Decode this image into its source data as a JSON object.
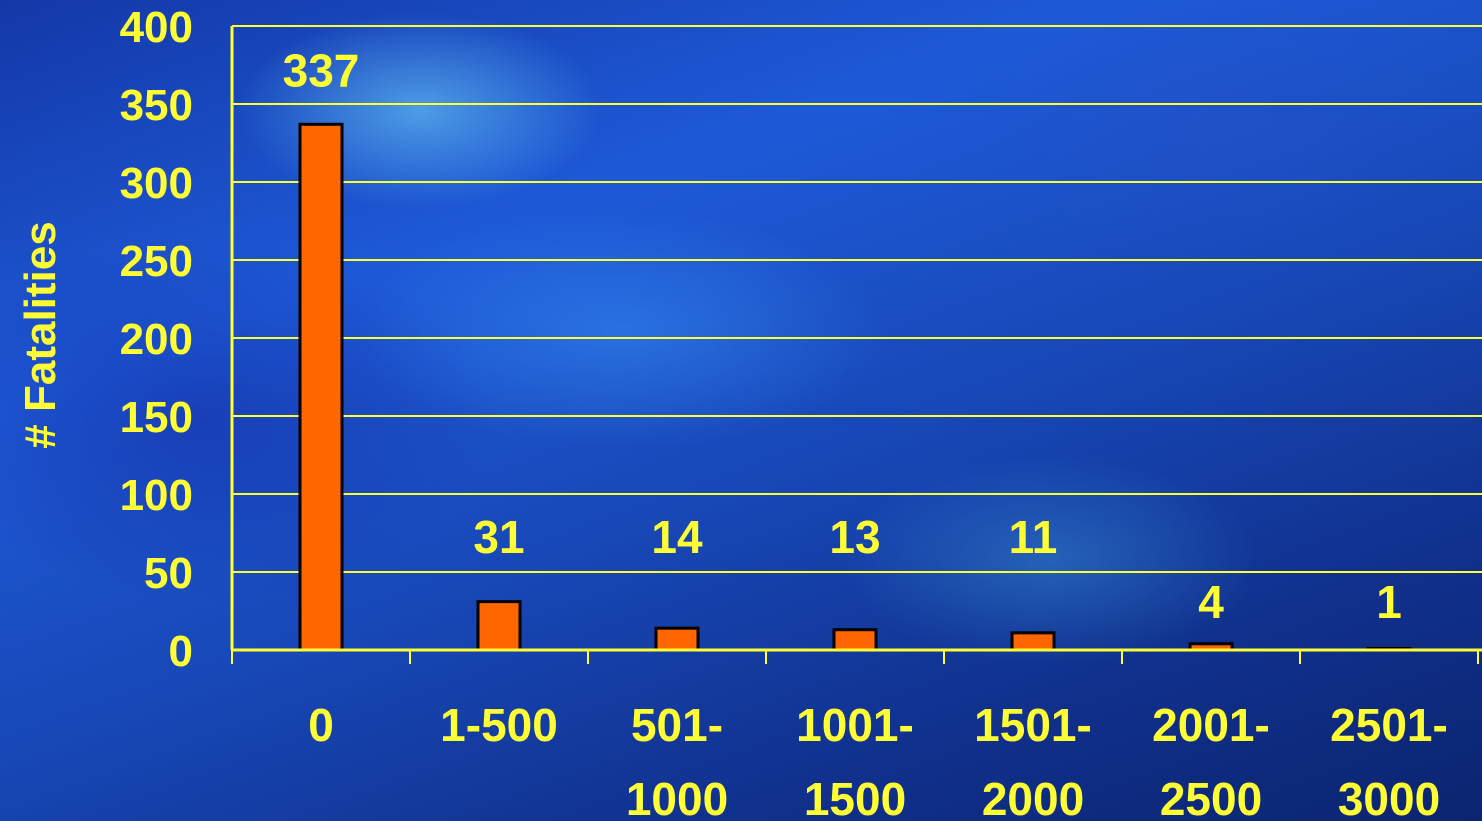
{
  "chart_data": {
    "type": "bar",
    "ylabel": "# Fatalities",
    "ylim": [
      0,
      400
    ],
    "yticks": [
      0,
      50,
      100,
      150,
      200,
      250,
      300,
      350,
      400
    ],
    "categories": [
      [
        "0"
      ],
      [
        "1-500"
      ],
      [
        "501-",
        "1000"
      ],
      [
        "1001-",
        "1500"
      ],
      [
        "1501-",
        "2000"
      ],
      [
        "2001-",
        "2500"
      ],
      [
        "2501-",
        "3000"
      ]
    ],
    "values": [
      337,
      31,
      14,
      13,
      11,
      4,
      1
    ],
    "grid": true,
    "colors": {
      "bar": "#ff6600",
      "bar_outline": "#000000",
      "text": "#ffff33",
      "grid": "#ffff33"
    }
  }
}
